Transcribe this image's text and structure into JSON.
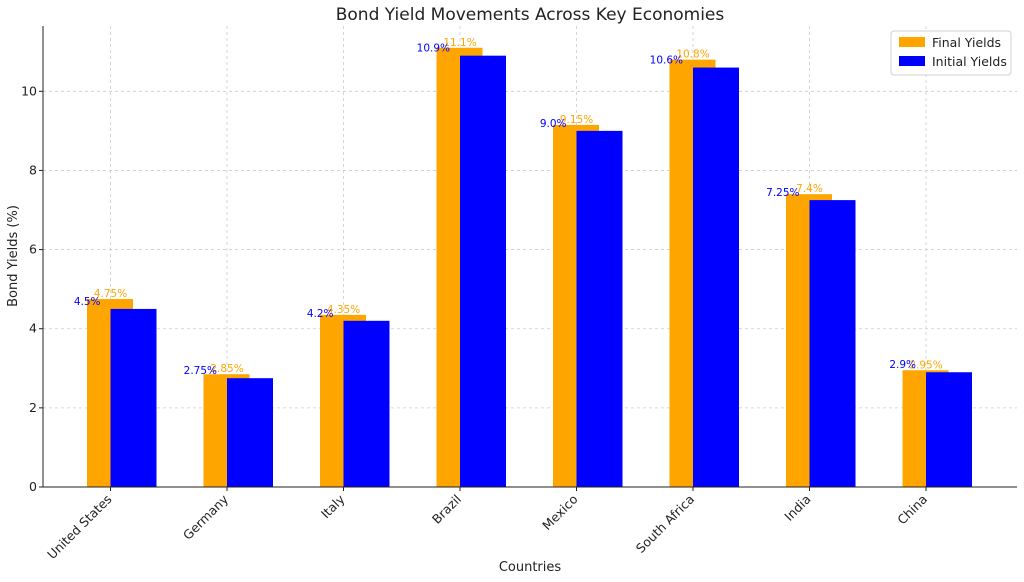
{
  "chart_data": {
    "type": "bar",
    "title": "Bond Yield Movements Across Key Economies",
    "xlabel": "Countries",
    "ylabel": "Bond Yields (%)",
    "categories": [
      "United States",
      "Germany",
      "Italy",
      "Brazil",
      "Mexico",
      "South Africa",
      "India",
      "China"
    ],
    "series": [
      {
        "name": "Final Yields",
        "color": "#FFA500",
        "values": [
          4.75,
          2.85,
          4.35,
          11.1,
          9.15,
          10.8,
          7.4,
          2.95
        ],
        "labels": [
          "4.75%",
          "2.85%",
          "4.35%",
          "11.1%",
          "9.15%",
          "10.8%",
          "7.4%",
          "2.95%"
        ]
      },
      {
        "name": "Initial Yields",
        "color": "#0000FF",
        "values": [
          4.5,
          2.75,
          4.2,
          10.9,
          9.0,
          10.6,
          7.25,
          2.9
        ],
        "labels": [
          "4.5%",
          "2.75%",
          "4.2%",
          "10.9%",
          "9.0%",
          "10.6%",
          "7.25%",
          "2.9%"
        ]
      }
    ],
    "ylim": [
      0,
      11.65
    ],
    "yticks": [
      0,
      2,
      4,
      6,
      8,
      10
    ],
    "grid": true,
    "legend": "top-right"
  }
}
